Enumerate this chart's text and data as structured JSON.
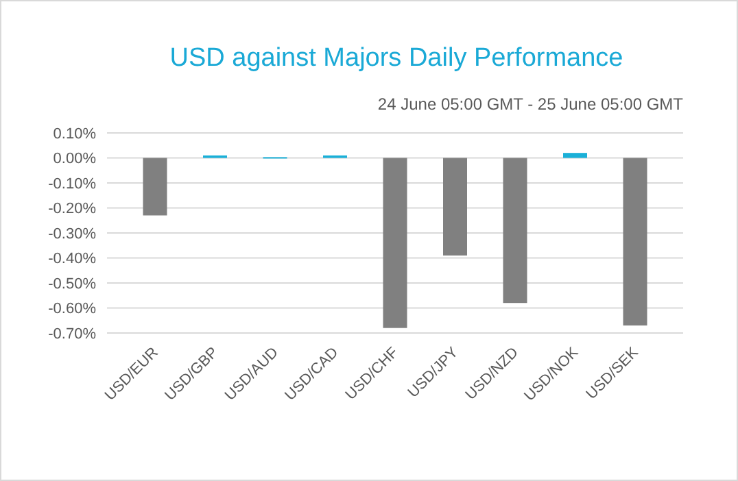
{
  "chart_data": {
    "type": "bar",
    "title": "USD against Majors Daily Performance",
    "subtitle": "24 June 05:00 GMT - 25 June 05:00 GMT",
    "categories": [
      "USD/EUR",
      "USD/GBP",
      "USD/AUD",
      "USD/CAD",
      "USD/CHF",
      "USD/JPY",
      "USD/NZD",
      "USD/NOK",
      "USD/SEK"
    ],
    "values": [
      -0.23,
      0.01,
      0.003,
      0.01,
      -0.68,
      -0.39,
      -0.58,
      0.02,
      -0.67
    ],
    "colors": [
      "#808080",
      "#1ab0d8",
      "#1ab0d8",
      "#1ab0d8",
      "#808080",
      "#808080",
      "#808080",
      "#1ab0d8",
      "#808080"
    ],
    "ylim": [
      -0.7,
      0.1
    ],
    "yticks": [
      {
        "value": 0.1,
        "label": "0.10%"
      },
      {
        "value": 0,
        "label": "0.00%"
      },
      {
        "value": -0.1,
        "label": "-0.10%"
      },
      {
        "value": -0.2,
        "label": "-0.20%"
      },
      {
        "value": -0.3,
        "label": "-0.30%"
      },
      {
        "value": -0.4,
        "label": "-0.40%"
      },
      {
        "value": -0.5,
        "label": "-0.50%"
      },
      {
        "value": -0.6,
        "label": "-0.60%"
      },
      {
        "value": -0.7,
        "label": "-0.70%"
      }
    ],
    "grid": "y"
  }
}
